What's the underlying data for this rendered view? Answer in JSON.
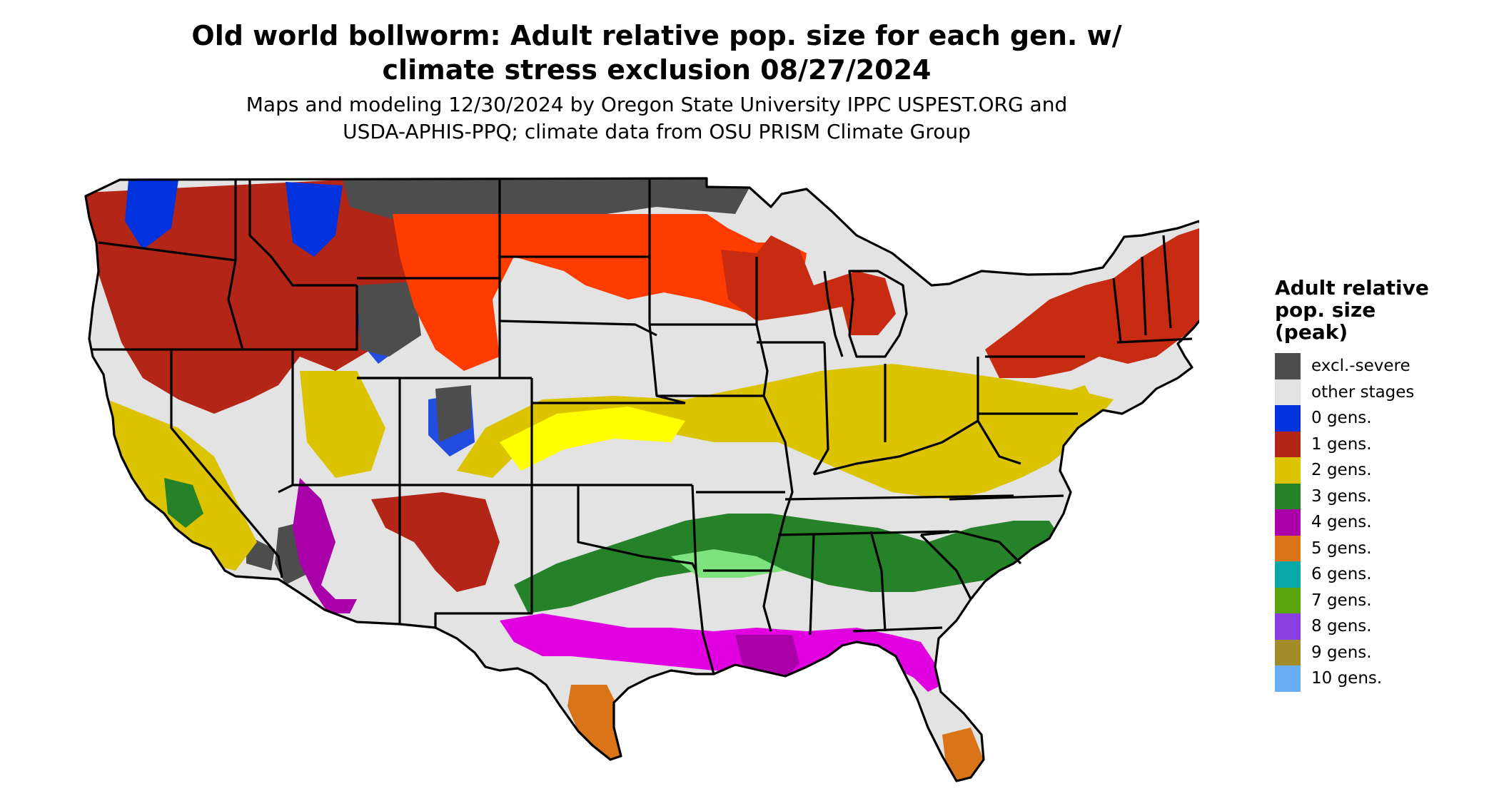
{
  "title_line1": "Old world bollworm: Adult relative pop. size for each gen. w/",
  "title_line2": "climate stress exclusion 08/27/2024",
  "subtitle_line1": "Maps and modeling 12/30/2024 by Oregon State University IPPC USPEST.ORG and",
  "subtitle_line2": "USDA-APHIS-PPQ; climate data from OSU PRISM Climate Group",
  "legend": {
    "title_line1": "Adult relative",
    "title_line2": "pop. size",
    "title_line3": "(peak)",
    "items": [
      {
        "label": "excl.-severe",
        "color": "#4d4d4d"
      },
      {
        "label": "other stages",
        "color": "#e3e3e3"
      },
      {
        "label": "0 gens.",
        "color": "#0033dd"
      },
      {
        "label": "1 gens.",
        "color": "#b22517"
      },
      {
        "label": "2 gens.",
        "color": "#dcc300"
      },
      {
        "label": "3 gens.",
        "color": "#268228"
      },
      {
        "label": "4 gens.",
        "color": "#aa00aa"
      },
      {
        "label": "5 gens.",
        "color": "#d97419"
      },
      {
        "label": "6 gens.",
        "color": "#0aa8a8"
      },
      {
        "label": "7 gens.",
        "color": "#5aa40e"
      },
      {
        "label": "8 gens.",
        "color": "#8b3fe0"
      },
      {
        "label": "9 gens.",
        "color": "#a38b2a"
      },
      {
        "label": "10 gens.",
        "color": "#6aadf7"
      }
    ]
  },
  "map_colors": {
    "background": "#e3e3e3",
    "excl_severe": "#4d4d4d",
    "zero_gen": "#0033dd",
    "one_gen_dark": "#b22517",
    "one_gen_bright": "#ff3c00",
    "two_gen": "#dcc300",
    "two_gen_bright": "#ffff00",
    "three_gen": "#268228",
    "three_gen_light": "#7ee37e",
    "four_gen": "#aa00aa",
    "four_gen_bright": "#e000e0",
    "five_gen": "#d97419",
    "boundary": "#000000"
  }
}
